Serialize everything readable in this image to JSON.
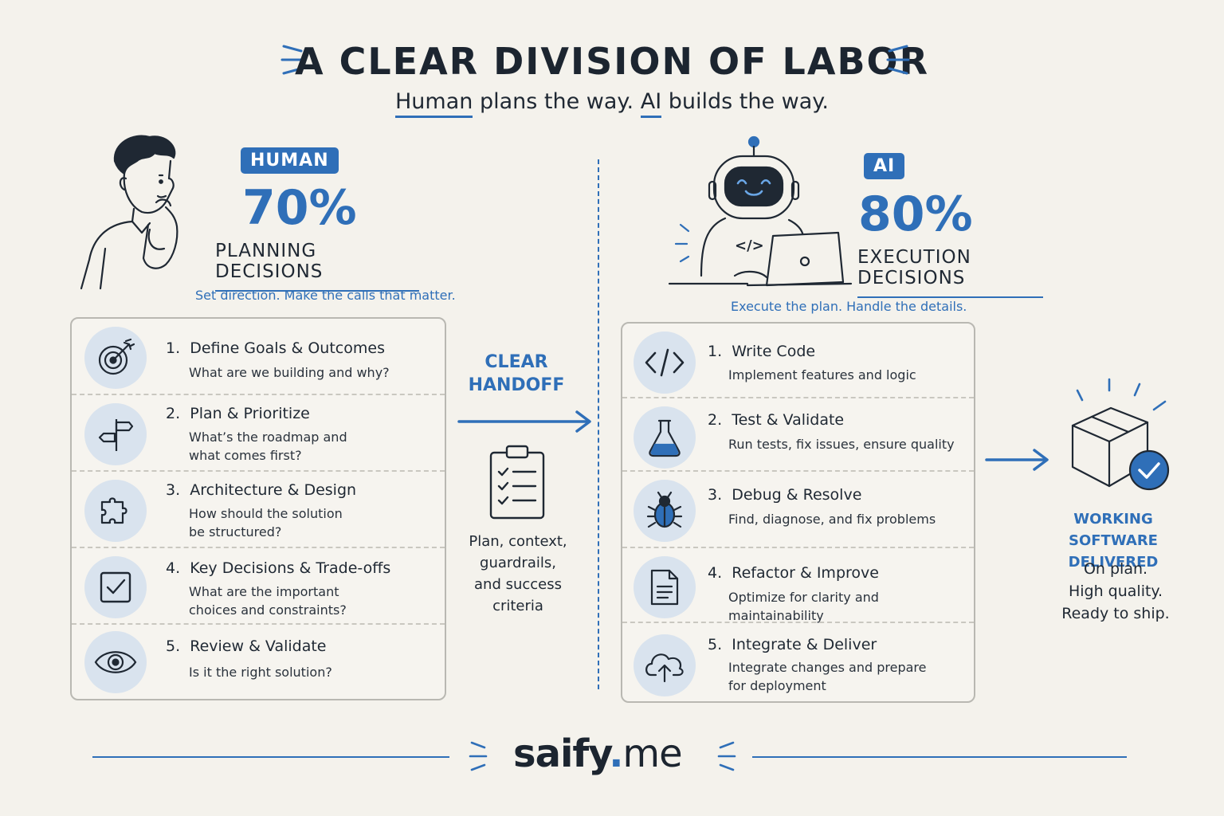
{
  "title": "A CLEAR DIVISION OF LABOR",
  "subtitle": {
    "human_word": "Human",
    "part1": " plans the way. ",
    "ai_word": "AI",
    "part2": " builds the way."
  },
  "human": {
    "badge": "HUMAN",
    "percent": "70%",
    "heading": "PLANNING DECISIONS",
    "tagline": "Set direction. Make the calls that matter.",
    "items": [
      {
        "num": "1.",
        "title": "Define Goals & Outcomes",
        "desc": "What are we building and why?",
        "icon": "target-icon"
      },
      {
        "num": "2.",
        "title": "Plan & Prioritize",
        "desc": "What’s the roadmap and\nwhat comes first?",
        "icon": "signpost-icon"
      },
      {
        "num": "3.",
        "title": "Architecture & Design",
        "desc": "How should the solution\nbe structured?",
        "icon": "puzzle-icon"
      },
      {
        "num": "4.",
        "title": "Key Decisions & Trade-offs",
        "desc": "What are the important\nchoices and constraints?",
        "icon": "checkbox-icon"
      },
      {
        "num": "5.",
        "title": "Review & Validate",
        "desc": "Is it the right solution?",
        "icon": "eye-icon"
      }
    ]
  },
  "handoff": {
    "label_line1": "CLEAR",
    "label_line2": "HANDOFF",
    "desc_lines": [
      "Plan, context,",
      "guardrails,",
      "and success",
      "criteria"
    ]
  },
  "ai": {
    "badge": "AI",
    "percent": "80%",
    "heading": "EXECUTION DECISIONS",
    "tagline": "Execute the plan. Handle the details.",
    "laptop_glyph": "</>",
    "items": [
      {
        "num": "1.",
        "title": "Write Code",
        "desc": "Implement features and logic",
        "icon": "code-icon"
      },
      {
        "num": "2.",
        "title": "Test & Validate",
        "desc": "Run tests, fix issues, ensure quality",
        "icon": "flask-icon"
      },
      {
        "num": "3.",
        "title": "Debug & Resolve",
        "desc": "Find, diagnose, and fix problems",
        "icon": "bug-icon"
      },
      {
        "num": "4.",
        "title": "Refactor & Improve",
        "desc": "Optimize for clarity and maintainability",
        "icon": "document-icon"
      },
      {
        "num": "5.",
        "title": "Integrate & Deliver",
        "desc": "Integrate changes and prepare\nfor deployment",
        "icon": "cloud-upload-icon"
      }
    ]
  },
  "delivered": {
    "title_line1": "WORKING SOFTWARE",
    "title_line2": "DELIVERED",
    "desc_lines": [
      "On plan.",
      "High quality.",
      "Ready to ship."
    ]
  },
  "footer": {
    "brand_main": "saify",
    "brand_dot": ".",
    "brand_tld": "me"
  },
  "colors": {
    "accent": "#2f6fb8",
    "background": "#f4f2ec",
    "icon_circle": "#d9e3ee",
    "ink": "#1f2833"
  }
}
